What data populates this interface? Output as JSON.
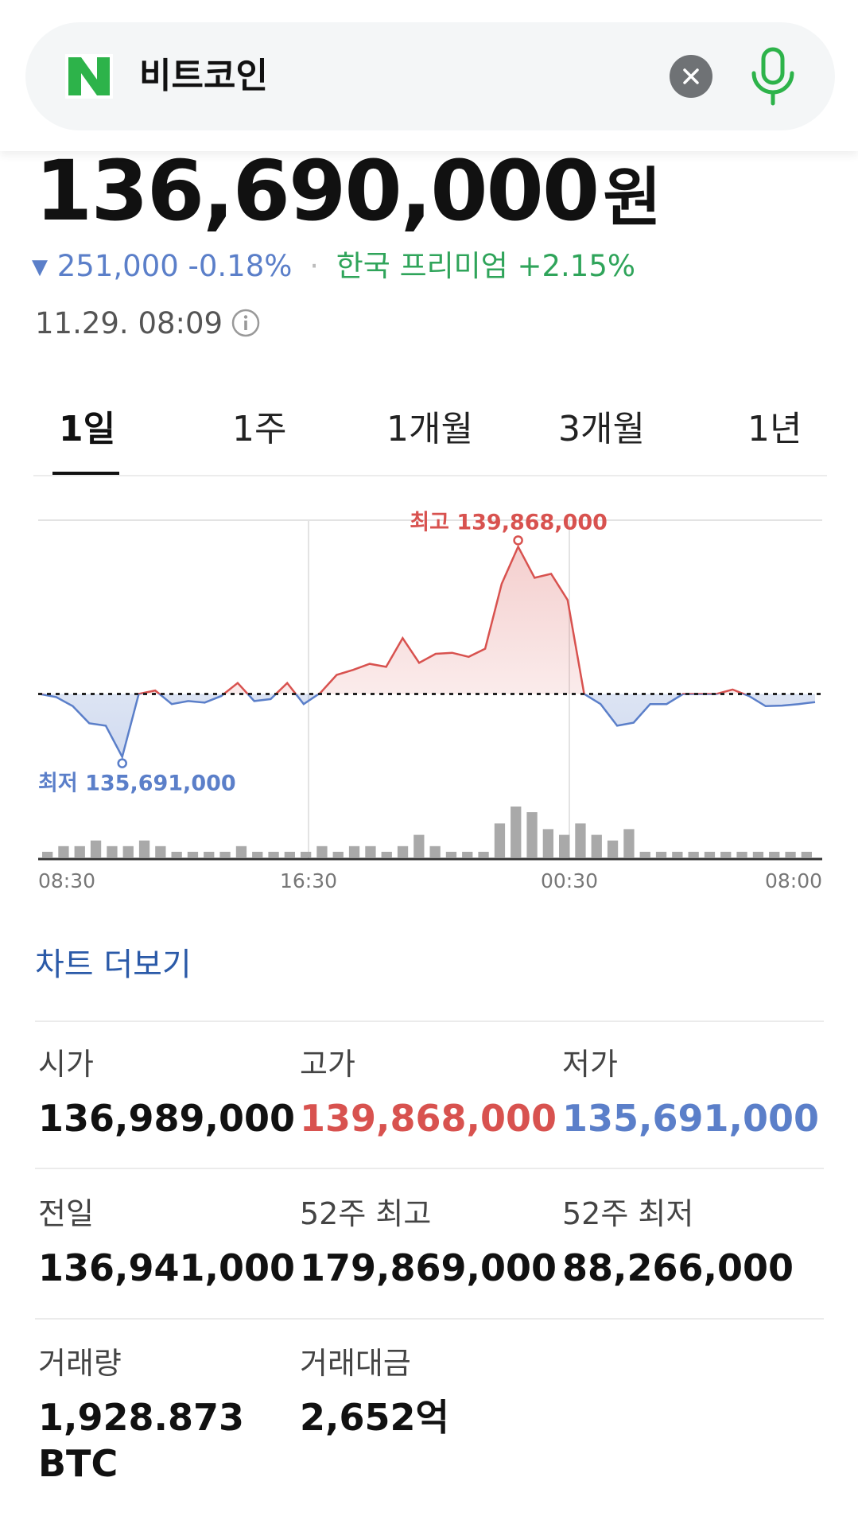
{
  "search": {
    "logo": "N",
    "query": "비트코인",
    "clear_icon": "close-circle-icon",
    "mic_icon": "microphone-icon"
  },
  "price": {
    "value": "136,690,000",
    "unit": "원",
    "change_arrow": "▼",
    "change": "251,000 -0.18%",
    "separator": "·",
    "premium": "한국 프리미엄 +2.15%",
    "timestamp": "11.29. 08:09"
  },
  "tabs": [
    {
      "label": "1일",
      "active": true
    },
    {
      "label": "1주",
      "active": false
    },
    {
      "label": "1개월",
      "active": false
    },
    {
      "label": "3개월",
      "active": false
    },
    {
      "label": "1년",
      "active": false
    }
  ],
  "chart_data": {
    "type": "line",
    "x_ticks": [
      "08:30",
      "16:30",
      "00:30",
      "08:00"
    ],
    "baseline": 136941000,
    "ylim": [
      135400000,
      140300000
    ],
    "high_label": "최고 139,868,000",
    "low_label": "최저 135,691,000",
    "high": 139868000,
    "low": 135691000,
    "price_series": [
      136941000,
      136880000,
      136700000,
      136360000,
      136310000,
      135691000,
      136941000,
      137010000,
      136740000,
      136800000,
      136770000,
      136900000,
      137160000,
      136800000,
      136840000,
      137160000,
      136740000,
      136960000,
      137320000,
      137420000,
      137540000,
      137480000,
      138050000,
      137560000,
      137740000,
      137760000,
      137680000,
      137840000,
      139130000,
      139868000,
      139250000,
      139330000,
      138810000,
      136941000,
      136740000,
      136310000,
      136370000,
      136740000,
      136740000,
      136941000,
      136941000,
      136940000,
      137030000,
      136900000,
      136700000,
      136710000,
      136740000,
      136780000
    ],
    "volume": [
      1,
      2,
      2,
      3,
      2,
      2,
      3,
      2,
      1,
      1,
      1,
      1,
      2,
      1,
      1,
      1,
      1,
      2,
      1,
      2,
      2,
      1,
      2,
      4,
      2,
      1,
      1,
      1,
      6,
      9,
      8,
      5,
      4,
      6,
      4,
      3,
      5,
      1,
      1,
      1,
      1,
      1,
      1,
      1,
      1,
      1,
      1,
      1
    ],
    "grid": true
  },
  "more_chart": "차트 더보기",
  "stats": [
    {
      "label": "시가",
      "value": "136,989,000",
      "tone": "normal"
    },
    {
      "label": "고가",
      "value": "139,868,000",
      "tone": "red"
    },
    {
      "label": "저가",
      "value": "135,691,000",
      "tone": "blue"
    },
    {
      "label": "전일",
      "value": "136,941,000",
      "tone": "normal"
    },
    {
      "label": "52주 최고",
      "value": "179,869,000",
      "tone": "normal"
    },
    {
      "label": "52주 최저",
      "value": "88,266,000",
      "tone": "normal"
    },
    {
      "label": "거래량",
      "value": "1,928.873",
      "value2": "BTC",
      "tone": "normal"
    },
    {
      "label": "거래대금",
      "value": "2,652억",
      "tone": "normal"
    }
  ],
  "colors": {
    "up": "#d8524f",
    "down": "#5b7fc9",
    "premium": "#2fa45a",
    "naver_green": "#03c75a",
    "link": "#2b5aa8"
  }
}
